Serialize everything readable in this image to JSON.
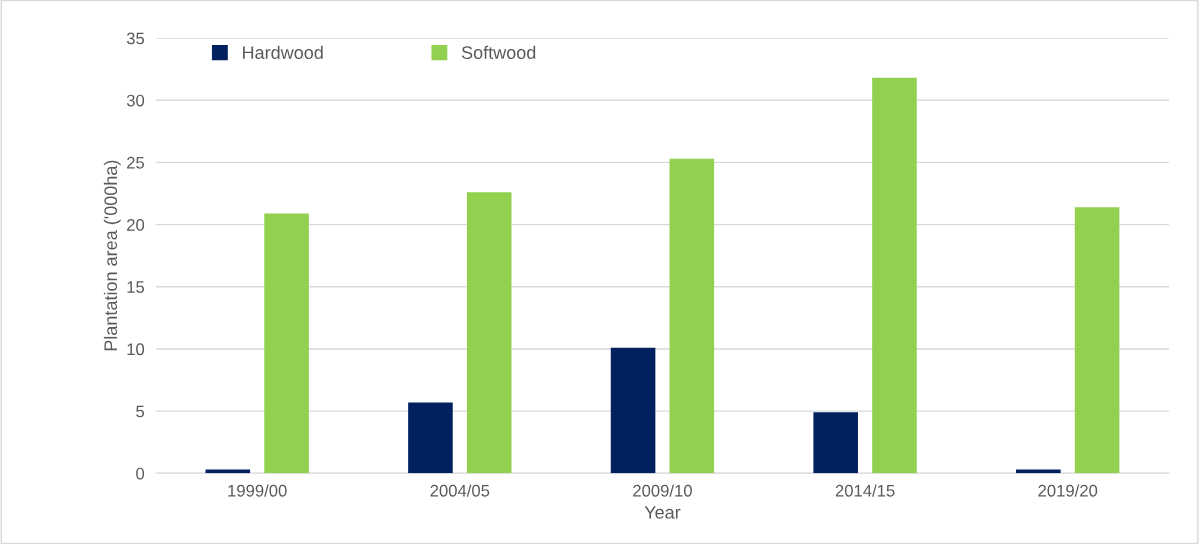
{
  "chart_data": {
    "type": "bar",
    "xlabel": "Year",
    "ylabel": "Plantation area ('000ha)",
    "categories": [
      "1999/00",
      "2004/05",
      "2009/10",
      "2014/15",
      "2019/20"
    ],
    "series": [
      {
        "name": "Hardwood",
        "color": "#002060",
        "values": [
          0.3,
          5.7,
          10.1,
          4.9,
          0.3
        ]
      },
      {
        "name": "Softwood",
        "color": "#92d050",
        "values": [
          20.9,
          22.6,
          25.3,
          31.8,
          21.4
        ]
      }
    ],
    "ylim": [
      0,
      35
    ],
    "yticks": [
      0,
      5,
      10,
      15,
      20,
      25,
      30,
      35
    ],
    "grid": "y",
    "legend": "top left"
  }
}
